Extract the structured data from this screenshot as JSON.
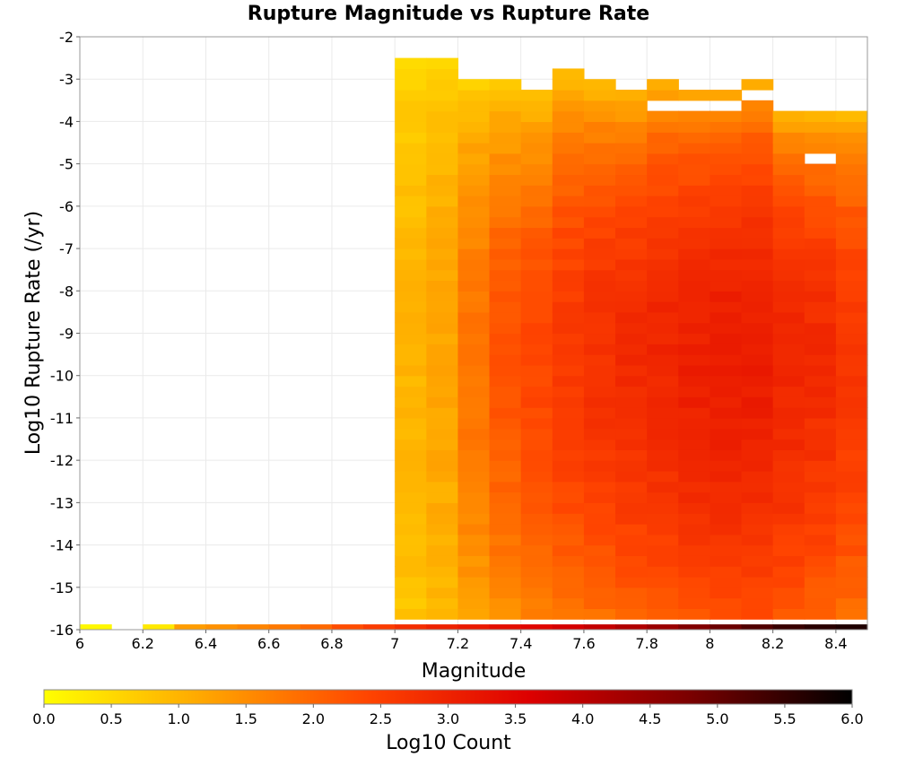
{
  "chart_data": {
    "type": "heatmap",
    "title": "Rupture Magnitude vs Rupture Rate",
    "xlabel": "Magnitude",
    "ylabel": "Log10 Rupture Rate (/yr)",
    "xlim": [
      6.0,
      8.5
    ],
    "ylim": [
      -16,
      -2
    ],
    "x_ticks": [
      "6",
      "6.2",
      "6.4",
      "6.6",
      "6.8",
      "7",
      "7.2",
      "7.4",
      "7.6",
      "7.8",
      "8",
      "8.2",
      "8.4"
    ],
    "x_tick_values": [
      6.0,
      6.2,
      6.4,
      6.6,
      6.8,
      7.0,
      7.2,
      7.4,
      7.6,
      7.8,
      8.0,
      8.2,
      8.4
    ],
    "y_ticks": [
      "-2",
      "-3",
      "-4",
      "-5",
      "-6",
      "-7",
      "-8",
      "-9",
      "-10",
      "-11",
      "-12",
      "-13",
      "-14",
      "-15",
      "-16"
    ],
    "y_tick_values": [
      -2,
      -3,
      -4,
      -5,
      -6,
      -7,
      -8,
      -9,
      -10,
      -11,
      -12,
      -13,
      -14,
      -15,
      -16
    ],
    "grid": true,
    "colorbar": {
      "label": "Log10 Count",
      "range": [
        0.0,
        6.0
      ],
      "ticks": [
        "0.0",
        "0.5",
        "1.0",
        "1.5",
        "2.0",
        "2.5",
        "3.0",
        "3.5",
        "4.0",
        "4.5",
        "5.0",
        "5.5",
        "6.0"
      ],
      "tick_values": [
        0.0,
        0.5,
        1.0,
        1.5,
        2.0,
        2.5,
        3.0,
        3.5,
        4.0,
        4.5,
        5.0,
        5.5,
        6.0
      ],
      "colormap": "heat (yellow-orange-red-black)",
      "colors": [
        "#ffff00",
        "#ffa500",
        "#ff4500",
        "#dd0000",
        "#7a0000",
        "#000000"
      ]
    },
    "cell_size": {
      "magnitude": 0.1,
      "log10_rate": 0.25
    },
    "columns": [
      {
        "magnitude": 7.0,
        "top": -2.75,
        "base": 1.0,
        "peak": 1.0,
        "holes": []
      },
      {
        "magnitude": 7.1,
        "top": -2.75,
        "base": 1.1,
        "peak": 1.2,
        "holes": []
      },
      {
        "magnitude": 7.2,
        "top": -3.25,
        "base": 1.3,
        "peak": 1.8,
        "holes": []
      },
      {
        "magnitude": 7.3,
        "top": -3.25,
        "base": 1.45,
        "peak": 2.2,
        "holes": []
      },
      {
        "magnitude": 7.4,
        "top": -3.5,
        "base": 1.6,
        "peak": 2.4,
        "holes": []
      },
      {
        "magnitude": 7.5,
        "top": -3.0,
        "base": 1.85,
        "peak": 2.6,
        "holes": []
      },
      {
        "magnitude": 7.6,
        "top": -3.25,
        "base": 2.0,
        "peak": 2.75,
        "holes": []
      },
      {
        "magnitude": 7.7,
        "top": -3.5,
        "base": 2.3,
        "peak": 2.85,
        "holes": []
      },
      {
        "magnitude": 7.8,
        "top": -3.25,
        "base": 2.5,
        "peak": 2.95,
        "holes": [
          -3.75
        ]
      },
      {
        "magnitude": 7.9,
        "top": -3.5,
        "base": 2.7,
        "peak": 3.05,
        "holes": [
          -3.75
        ]
      },
      {
        "magnitude": 8.0,
        "top": -3.5,
        "base": 2.75,
        "peak": 3.1,
        "holes": [
          -3.75
        ]
      },
      {
        "magnitude": 8.1,
        "top": -3.25,
        "base": 2.75,
        "peak": 3.1,
        "holes": [
          -3.5
        ]
      },
      {
        "magnitude": 8.2,
        "top": -4.0,
        "base": 2.6,
        "peak": 2.95,
        "holes": []
      },
      {
        "magnitude": 8.3,
        "top": -4.0,
        "base": 2.35,
        "peak": 2.85,
        "holes": [
          -5.0
        ]
      },
      {
        "magnitude": 8.4,
        "top": -4.0,
        "base": 2.2,
        "peak": 2.65,
        "holes": []
      }
    ],
    "bottom_row": {
      "log10_rate": -16,
      "cells": [
        {
          "magnitude": 6.0,
          "value": 0.1
        },
        {
          "magnitude": 6.2,
          "value": 0.3
        },
        {
          "magnitude": 6.3,
          "value": 1.3
        },
        {
          "magnitude": 6.4,
          "value": 1.45
        },
        {
          "magnitude": 6.5,
          "value": 1.6
        },
        {
          "magnitude": 6.6,
          "value": 1.75
        },
        {
          "magnitude": 6.7,
          "value": 1.95
        },
        {
          "magnitude": 6.8,
          "value": 2.3
        },
        {
          "magnitude": 6.9,
          "value": 2.55
        },
        {
          "magnitude": 7.0,
          "value": 2.8
        },
        {
          "magnitude": 7.1,
          "value": 3.0
        },
        {
          "magnitude": 7.2,
          "value": 3.15
        },
        {
          "magnitude": 7.3,
          "value": 3.35
        },
        {
          "magnitude": 7.4,
          "value": 3.5
        },
        {
          "magnitude": 7.5,
          "value": 3.7
        },
        {
          "magnitude": 7.6,
          "value": 3.9
        },
        {
          "magnitude": 7.7,
          "value": 4.15
        },
        {
          "magnitude": 7.8,
          "value": 4.4
        },
        {
          "magnitude": 7.9,
          "value": 4.7
        },
        {
          "magnitude": 8.0,
          "value": 4.95
        },
        {
          "magnitude": 8.1,
          "value": 5.2
        },
        {
          "magnitude": 8.2,
          "value": 5.45
        },
        {
          "magnitude": 8.3,
          "value": 5.6
        },
        {
          "magnitude": 8.4,
          "value": 5.7
        }
      ]
    }
  }
}
